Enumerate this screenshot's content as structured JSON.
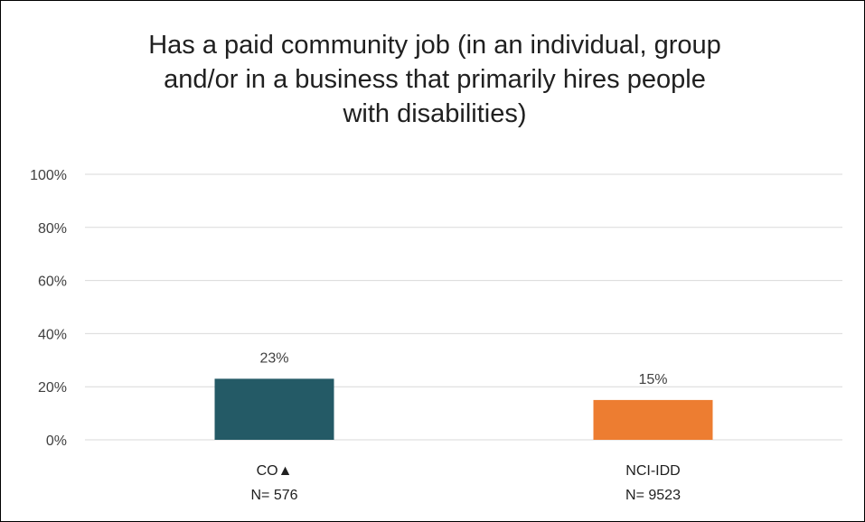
{
  "chart_data": {
    "type": "bar",
    "title_lines": [
      "Has a paid community job (in an individual, group",
      "and/or in a business that primarily hires people",
      "with disabilities)"
    ],
    "categories": [
      {
        "label": "CO▲",
        "n_label": "N= 576"
      },
      {
        "label": "NCI-IDD",
        "n_label": "N= 9523"
      }
    ],
    "values": [
      23,
      15
    ],
    "value_labels": [
      "23%",
      "15%"
    ],
    "colors": [
      "#245a66",
      "#ed7d31"
    ],
    "yticks": [
      {
        "value": 0,
        "label": "0%"
      },
      {
        "value": 20,
        "label": "20%"
      },
      {
        "value": 40,
        "label": "40%"
      },
      {
        "value": 60,
        "label": "60%"
      },
      {
        "value": 80,
        "label": "80%"
      },
      {
        "value": 100,
        "label": "100%"
      }
    ],
    "ylim": [
      0,
      100
    ],
    "grid": true,
    "legend": "none"
  }
}
